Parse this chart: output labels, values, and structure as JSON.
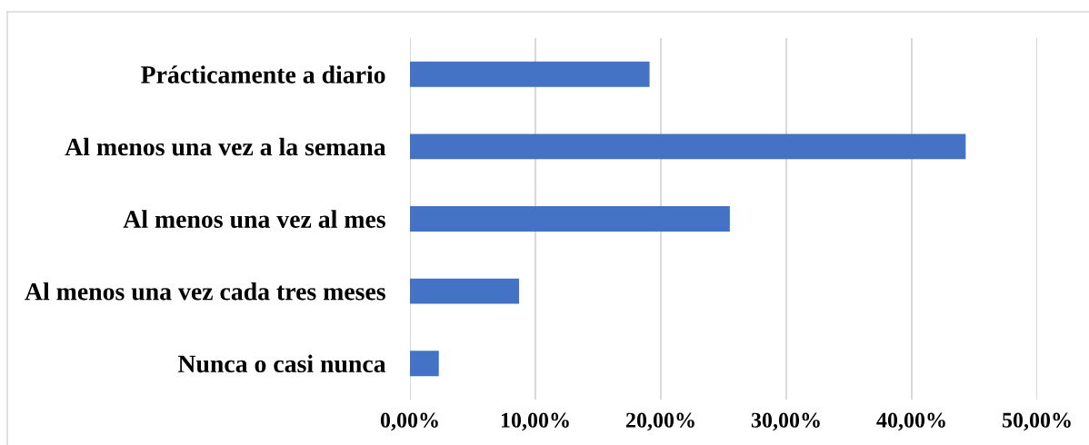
{
  "chart_data": {
    "type": "bar",
    "orientation": "horizontal",
    "categories": [
      "Prácticamente a diario",
      "Al menos una vez a la semana",
      "Al menos una vez al mes",
      "Al menos una vez cada tres meses",
      "Nunca o casi nunca"
    ],
    "values": [
      19.1,
      44.3,
      25.5,
      8.7,
      2.3
    ],
    "color": "#4472c4",
    "xlim": [
      0,
      50
    ],
    "xticks": [
      {
        "value": 0,
        "label": "0,00%"
      },
      {
        "value": 10,
        "label": "10,00%"
      },
      {
        "value": 20,
        "label": "20,00%"
      },
      {
        "value": 30,
        "label": "30,00%"
      },
      {
        "value": 40,
        "label": "40,00%"
      },
      {
        "value": 50,
        "label": "50,00%"
      }
    ],
    "grid": "x"
  }
}
